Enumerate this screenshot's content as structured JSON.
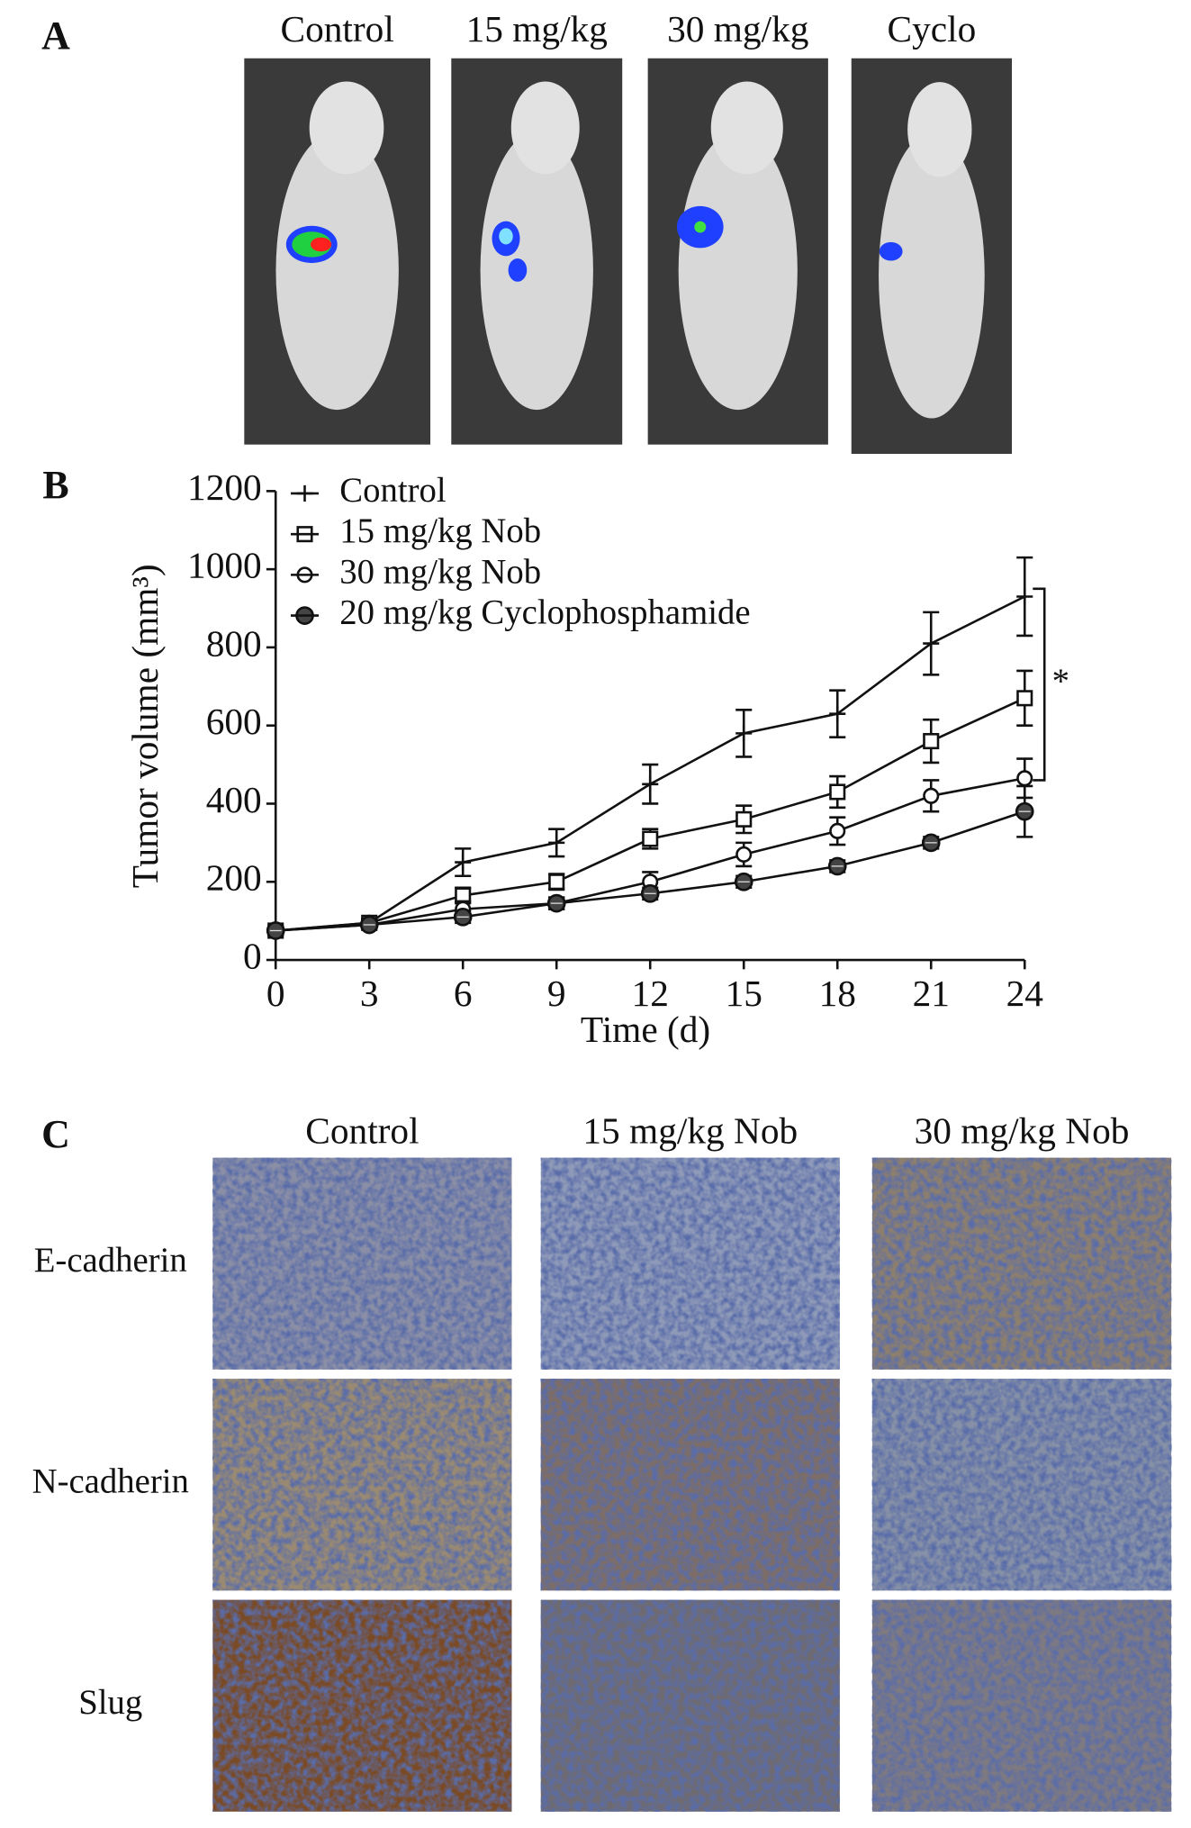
{
  "panel_a": {
    "label": "A",
    "columns": [
      "Control",
      "15 mg/kg",
      "30 mg/kg",
      "Cyclo"
    ]
  },
  "chart_data": {
    "type": "line",
    "label": "B",
    "x_label": "Time (d)",
    "y_label": "Tumor volume (mm³)",
    "x": [
      0,
      3,
      6,
      9,
      12,
      15,
      18,
      21,
      24
    ],
    "xlim": [
      0,
      24
    ],
    "xticks": [
      0,
      3,
      6,
      9,
      12,
      15,
      18,
      21,
      24
    ],
    "ylim": [
      0,
      1200
    ],
    "yticks": [
      0,
      200,
      400,
      600,
      800,
      1000,
      1200
    ],
    "legend": "top-left",
    "color": "#111111",
    "series": [
      {
        "name": "Control",
        "marker": "plus",
        "values": [
          75,
          95,
          250,
          300,
          450,
          580,
          630,
          810,
          930
        ],
        "errors": [
          10,
          10,
          35,
          35,
          50,
          60,
          60,
          80,
          100
        ]
      },
      {
        "name": "15 mg/kg Nob",
        "marker": "square",
        "values": [
          75,
          95,
          165,
          200,
          310,
          360,
          430,
          560,
          670
        ],
        "errors": [
          10,
          10,
          20,
          20,
          25,
          35,
          40,
          55,
          70
        ]
      },
      {
        "name": "30 mg/kg Nob",
        "marker": "circle",
        "values": [
          75,
          90,
          130,
          145,
          200,
          270,
          330,
          420,
          465
        ],
        "errors": [
          10,
          10,
          20,
          15,
          25,
          30,
          35,
          40,
          50
        ]
      },
      {
        "name": "20 mg/kg Cyclophosphamide",
        "marker": "circle-filled",
        "values": [
          75,
          90,
          110,
          145,
          170,
          200,
          240,
          300,
          380
        ],
        "errors": [
          10,
          10,
          15,
          15,
          15,
          15,
          15,
          15,
          65
        ]
      }
    ],
    "annotation": {
      "text": "*",
      "range": [
        950,
        460
      ]
    }
  },
  "panel_c": {
    "label": "C",
    "columns": [
      "Control",
      "15 mg/kg Nob",
      "30 mg/kg Nob"
    ],
    "rows": [
      "E-cadherin",
      "N-cadherin",
      "Slug"
    ]
  }
}
